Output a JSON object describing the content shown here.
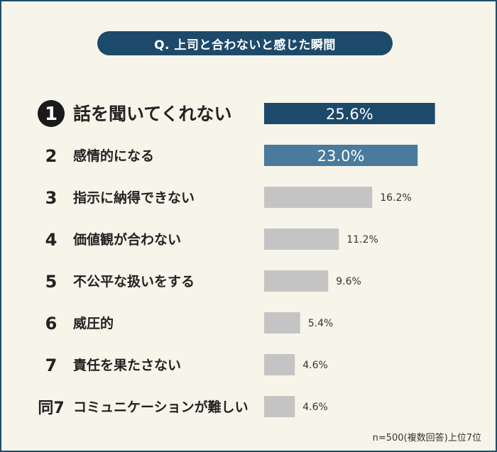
{
  "title": "Q. 上司と合わないと感じた瞬間",
  "footnote": "n=500(複数回答)上位7位",
  "colors": {
    "first": "#1d4a6b",
    "second": "#4a7a9c",
    "rest": "#c4c4c4",
    "badge": "#1a1a1a",
    "frame": "#1f4e6e"
  },
  "chart_data": {
    "type": "bar",
    "orientation": "horizontal",
    "title": "Q. 上司と合わないと感じた瞬間",
    "unit": "%",
    "xlim": [
      0,
      30
    ],
    "categories": [
      "話を聞いてくれない",
      "感情的になる",
      "指示に納得できない",
      "価値観が合わない",
      "不公平な扱いをする",
      "威圧的",
      "責任を果たさない",
      "コミュニケーションが難しい"
    ],
    "ranks": [
      "1",
      "2",
      "3",
      "4",
      "5",
      "6",
      "7",
      "同7"
    ],
    "values": [
      25.6,
      23.0,
      16.2,
      11.2,
      9.6,
      5.4,
      4.6,
      4.6
    ],
    "labels": [
      "25.6%",
      "23.0%",
      "16.2%",
      "11.2%",
      "9.6%",
      "5.4%",
      "4.6%",
      "4.6%"
    ],
    "note": "n=500(複数回答)上位7位"
  }
}
